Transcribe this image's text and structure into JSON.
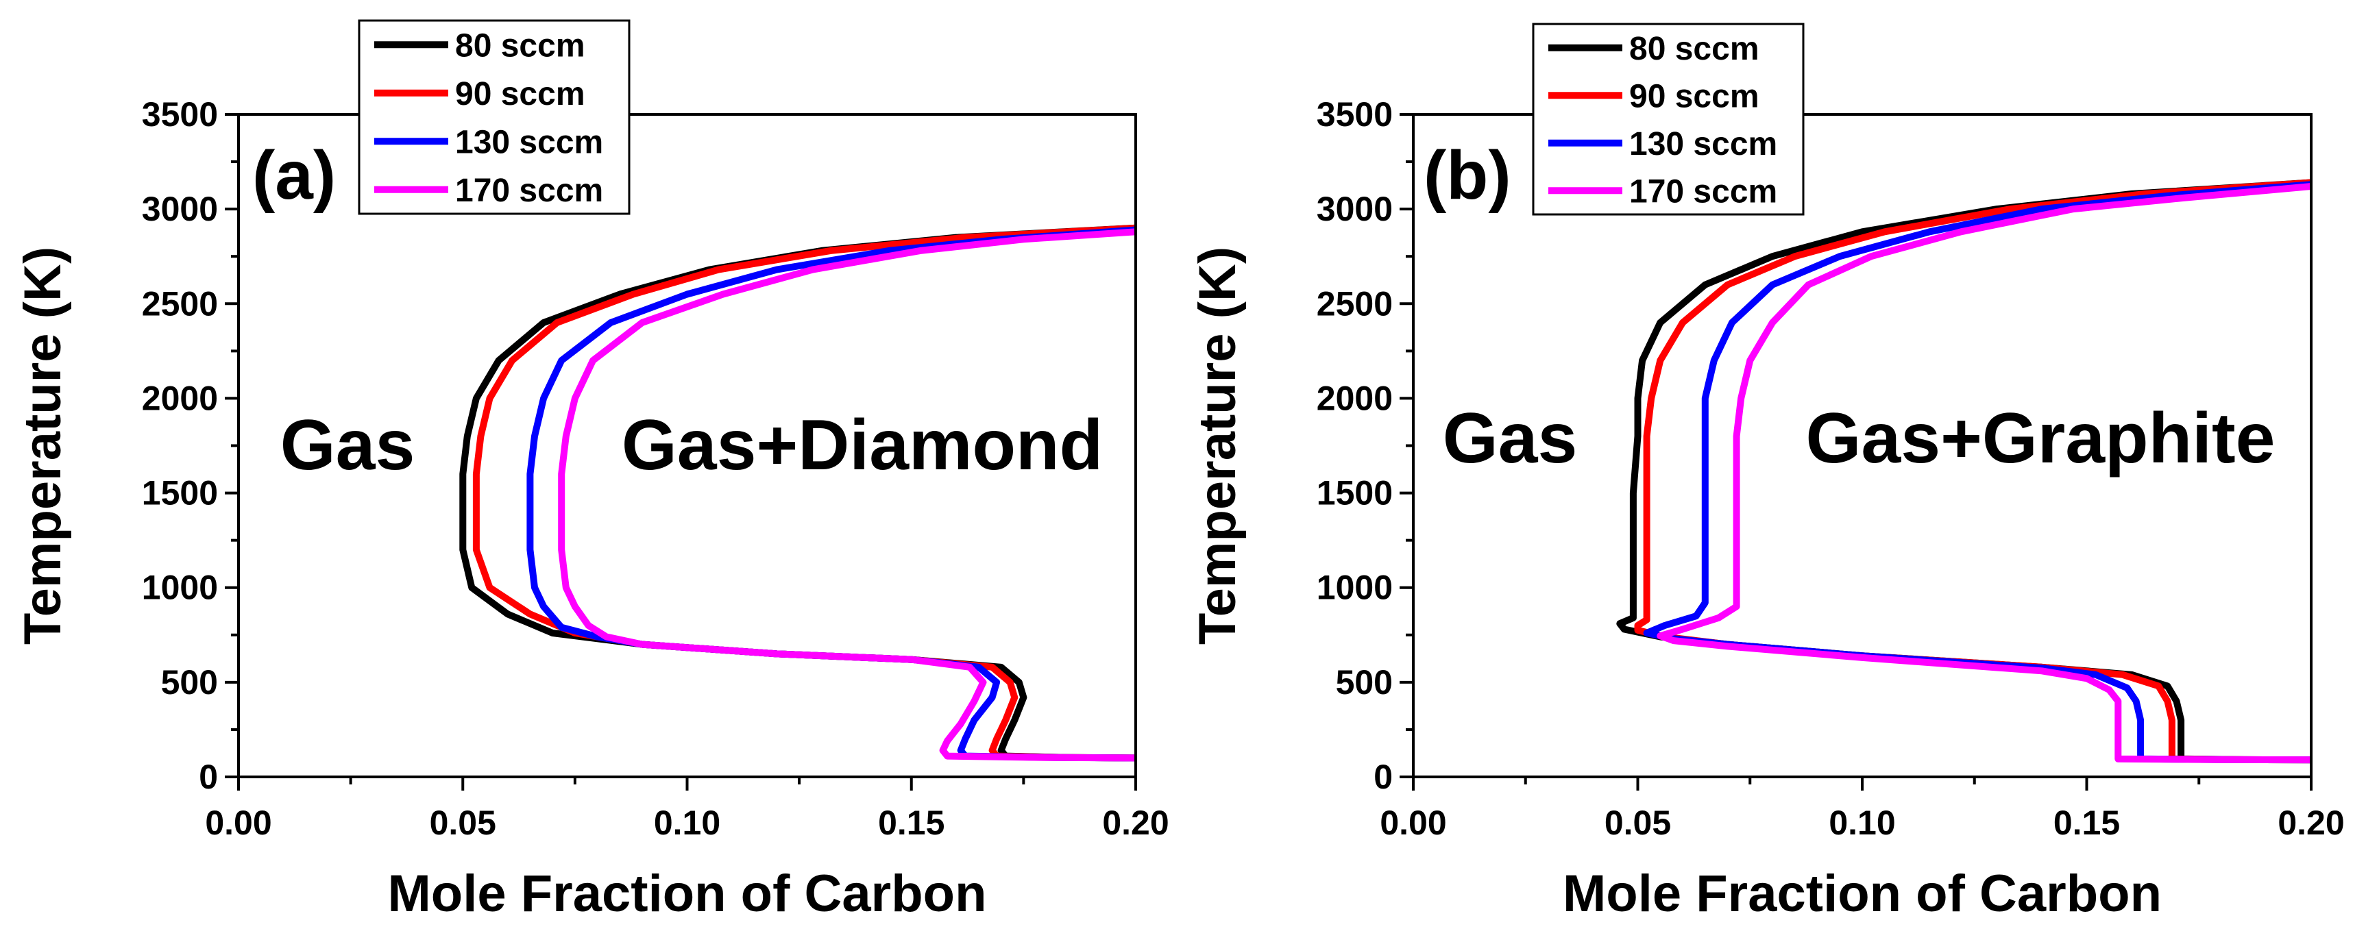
{
  "chart_data": [
    {
      "type": "line",
      "panel_label": "(a)",
      "xlabel": "Mole Fraction of Carbon",
      "ylabel": "Temperature (K)",
      "xlim": [
        0.0,
        0.2
      ],
      "ylim": [
        0,
        3500
      ],
      "xticks": [
        "0.00",
        "0.05",
        "0.10",
        "0.15",
        "0.20"
      ],
      "yticks": [
        "0",
        "500",
        "1000",
        "1500",
        "2000",
        "2500",
        "3000",
        "3500"
      ],
      "region_labels": {
        "left": "Gas",
        "right": "Gas+Diamond"
      },
      "legend": [
        "80 sccm",
        "90 sccm",
        "130 sccm",
        "170 sccm"
      ],
      "series": [
        {
          "name": "80 sccm",
          "color": "#000000",
          "points": [
            [
              0.2,
              100
            ],
            [
              0.185,
              102
            ],
            [
              0.171,
              110
            ],
            [
              0.17,
              140
            ],
            [
              0.171,
              200
            ],
            [
              0.173,
              300
            ],
            [
              0.175,
              420
            ],
            [
              0.174,
              500
            ],
            [
              0.17,
              580
            ],
            [
              0.15,
              620
            ],
            [
              0.12,
              650
            ],
            [
              0.09,
              700
            ],
            [
              0.07,
              760
            ],
            [
              0.06,
              860
            ],
            [
              0.052,
              1000
            ],
            [
              0.05,
              1200
            ],
            [
              0.05,
              1400
            ],
            [
              0.05,
              1600
            ],
            [
              0.051,
              1800
            ],
            [
              0.053,
              2000
            ],
            [
              0.058,
              2200
            ],
            [
              0.068,
              2400
            ],
            [
              0.085,
              2550
            ],
            [
              0.105,
              2680
            ],
            [
              0.13,
              2780
            ],
            [
              0.16,
              2850
            ],
            [
              0.2,
              2900
            ]
          ]
        },
        {
          "name": "90 sccm",
          "color": "#ff0000",
          "points": [
            [
              0.2,
              100
            ],
            [
              0.185,
              102
            ],
            [
              0.169,
              110
            ],
            [
              0.168,
              140
            ],
            [
              0.169,
              200
            ],
            [
              0.171,
              300
            ],
            [
              0.173,
              420
            ],
            [
              0.172,
              500
            ],
            [
              0.168,
              580
            ],
            [
              0.15,
              620
            ],
            [
              0.12,
              650
            ],
            [
              0.09,
              700
            ],
            [
              0.075,
              760
            ],
            [
              0.065,
              860
            ],
            [
              0.056,
              1000
            ],
            [
              0.053,
              1200
            ],
            [
              0.053,
              1400
            ],
            [
              0.053,
              1600
            ],
            [
              0.054,
              1800
            ],
            [
              0.056,
              2000
            ],
            [
              0.061,
              2200
            ],
            [
              0.071,
              2400
            ],
            [
              0.088,
              2550
            ],
            [
              0.107,
              2680
            ],
            [
              0.132,
              2780
            ],
            [
              0.162,
              2850
            ],
            [
              0.2,
              2900
            ]
          ]
        },
        {
          "name": "130 sccm",
          "color": "#0000ff",
          "points": [
            [
              0.2,
              100
            ],
            [
              0.183,
              102
            ],
            [
              0.162,
              110
            ],
            [
              0.161,
              140
            ],
            [
              0.162,
              200
            ],
            [
              0.164,
              300
            ],
            [
              0.168,
              420
            ],
            [
              0.169,
              500
            ],
            [
              0.165,
              580
            ],
            [
              0.15,
              620
            ],
            [
              0.12,
              650
            ],
            [
              0.09,
              700
            ],
            [
              0.08,
              740
            ],
            [
              0.072,
              790
            ],
            [
              0.068,
              900
            ],
            [
              0.066,
              1000
            ],
            [
              0.065,
              1200
            ],
            [
              0.065,
              1400
            ],
            [
              0.065,
              1600
            ],
            [
              0.066,
              1800
            ],
            [
              0.068,
              2000
            ],
            [
              0.072,
              2200
            ],
            [
              0.083,
              2400
            ],
            [
              0.1,
              2550
            ],
            [
              0.12,
              2680
            ],
            [
              0.145,
              2780
            ],
            [
              0.17,
              2840
            ],
            [
              0.2,
              2890
            ]
          ]
        },
        {
          "name": "170 sccm",
          "color": "#ff00ff",
          "points": [
            [
              0.2,
              100
            ],
            [
              0.18,
              102
            ],
            [
              0.158,
              110
            ],
            [
              0.157,
              140
            ],
            [
              0.158,
              190
            ],
            [
              0.161,
              280
            ],
            [
              0.164,
              400
            ],
            [
              0.166,
              500
            ],
            [
              0.163,
              580
            ],
            [
              0.15,
              620
            ],
            [
              0.12,
              650
            ],
            [
              0.09,
              700
            ],
            [
              0.082,
              740
            ],
            [
              0.078,
              800
            ],
            [
              0.075,
              900
            ],
            [
              0.073,
              1000
            ],
            [
              0.072,
              1200
            ],
            [
              0.072,
              1400
            ],
            [
              0.072,
              1600
            ],
            [
              0.073,
              1800
            ],
            [
              0.075,
              2000
            ],
            [
              0.079,
              2200
            ],
            [
              0.09,
              2400
            ],
            [
              0.108,
              2550
            ],
            [
              0.128,
              2680
            ],
            [
              0.152,
              2780
            ],
            [
              0.175,
              2840
            ],
            [
              0.2,
              2880
            ]
          ]
        }
      ]
    },
    {
      "type": "line",
      "panel_label": "(b)",
      "xlabel": "Mole Fraction of Carbon",
      "ylabel": "Temperature (K)",
      "xlim": [
        0.0,
        0.2
      ],
      "ylim": [
        0,
        3500
      ],
      "xticks": [
        "0.00",
        "0.05",
        "0.10",
        "0.15",
        "0.20"
      ],
      "yticks": [
        "0",
        "500",
        "1000",
        "1500",
        "2000",
        "2500",
        "3000",
        "3500"
      ],
      "region_labels": {
        "left": "Gas",
        "right": "Gas+Graphite"
      },
      "legend": [
        "80 sccm",
        "90 sccm",
        "130 sccm",
        "170 sccm"
      ],
      "series": [
        {
          "name": "80 sccm",
          "color": "#000000",
          "points": [
            [
              0.2,
              90
            ],
            [
              0.185,
              91
            ],
            [
              0.171,
              95
            ],
            [
              0.171,
              200
            ],
            [
              0.171,
              300
            ],
            [
              0.17,
              400
            ],
            [
              0.168,
              480
            ],
            [
              0.16,
              540
            ],
            [
              0.14,
              580
            ],
            [
              0.1,
              640
            ],
            [
              0.07,
              700
            ],
            [
              0.055,
              740
            ],
            [
              0.047,
              780
            ],
            [
              0.046,
              810
            ],
            [
              0.049,
              840
            ],
            [
              0.049,
              1000
            ],
            [
              0.049,
              1200
            ],
            [
              0.049,
              1500
            ],
            [
              0.05,
              1800
            ],
            [
              0.05,
              2000
            ],
            [
              0.051,
              2200
            ],
            [
              0.055,
              2400
            ],
            [
              0.065,
              2600
            ],
            [
              0.08,
              2750
            ],
            [
              0.1,
              2880
            ],
            [
              0.13,
              3000
            ],
            [
              0.16,
              3080
            ],
            [
              0.2,
              3140
            ]
          ]
        },
        {
          "name": "90 sccm",
          "color": "#ff0000",
          "points": [
            [
              0.2,
              90
            ],
            [
              0.185,
              91
            ],
            [
              0.169,
              95
            ],
            [
              0.169,
              200
            ],
            [
              0.169,
              300
            ],
            [
              0.168,
              400
            ],
            [
              0.166,
              480
            ],
            [
              0.158,
              540
            ],
            [
              0.14,
              580
            ],
            [
              0.1,
              640
            ],
            [
              0.07,
              700
            ],
            [
              0.056,
              740
            ],
            [
              0.05,
              775
            ],
            [
              0.05,
              800
            ],
            [
              0.052,
              830
            ],
            [
              0.052,
              1000
            ],
            [
              0.052,
              1200
            ],
            [
              0.052,
              1500
            ],
            [
              0.052,
              1800
            ],
            [
              0.053,
              2000
            ],
            [
              0.055,
              2200
            ],
            [
              0.06,
              2400
            ],
            [
              0.07,
              2600
            ],
            [
              0.085,
              2750
            ],
            [
              0.105,
              2880
            ],
            [
              0.133,
              3000
            ],
            [
              0.163,
              3080
            ],
            [
              0.2,
              3140
            ]
          ]
        },
        {
          "name": "130 sccm",
          "color": "#0000ff",
          "points": [
            [
              0.2,
              90
            ],
            [
              0.183,
              91
            ],
            [
              0.162,
              95
            ],
            [
              0.162,
              200
            ],
            [
              0.162,
              300
            ],
            [
              0.161,
              400
            ],
            [
              0.159,
              470
            ],
            [
              0.152,
              540
            ],
            [
              0.14,
              575
            ],
            [
              0.1,
              640
            ],
            [
              0.07,
              700
            ],
            [
              0.058,
              730
            ],
            [
              0.052,
              760
            ],
            [
              0.056,
              800
            ],
            [
              0.063,
              850
            ],
            [
              0.065,
              920
            ],
            [
              0.065,
              1000
            ],
            [
              0.065,
              1200
            ],
            [
              0.065,
              1500
            ],
            [
              0.065,
              1800
            ],
            [
              0.065,
              2000
            ],
            [
              0.067,
              2200
            ],
            [
              0.071,
              2400
            ],
            [
              0.08,
              2600
            ],
            [
              0.095,
              2750
            ],
            [
              0.115,
              2880
            ],
            [
              0.14,
              3000
            ],
            [
              0.168,
              3070
            ],
            [
              0.2,
              3130
            ]
          ]
        },
        {
          "name": "170 sccm",
          "color": "#ff00ff",
          "points": [
            [
              0.2,
              90
            ],
            [
              0.18,
              91
            ],
            [
              0.157,
              95
            ],
            [
              0.157,
              200
            ],
            [
              0.157,
              300
            ],
            [
              0.157,
              400
            ],
            [
              0.155,
              460
            ],
            [
              0.15,
              520
            ],
            [
              0.14,
              560
            ],
            [
              0.1,
              630
            ],
            [
              0.07,
              690
            ],
            [
              0.058,
              720
            ],
            [
              0.055,
              745
            ],
            [
              0.06,
              780
            ],
            [
              0.068,
              840
            ],
            [
              0.072,
              900
            ],
            [
              0.072,
              1000
            ],
            [
              0.072,
              1200
            ],
            [
              0.072,
              1500
            ],
            [
              0.072,
              1800
            ],
            [
              0.073,
              2000
            ],
            [
              0.075,
              2200
            ],
            [
              0.08,
              2400
            ],
            [
              0.088,
              2600
            ],
            [
              0.102,
              2750
            ],
            [
              0.122,
              2880
            ],
            [
              0.147,
              3000
            ],
            [
              0.172,
              3060
            ],
            [
              0.2,
              3120
            ]
          ]
        }
      ]
    }
  ]
}
